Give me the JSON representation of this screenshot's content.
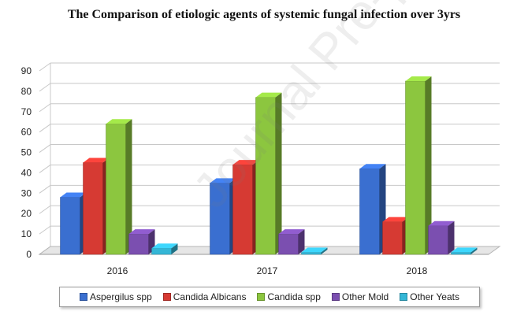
{
  "chart_data": {
    "type": "bar",
    "title": "The Comparison of etiologic agents of systemic fungal infection over 3yrs",
    "categories": [
      "2016",
      "2017",
      "2018"
    ],
    "series": [
      {
        "name": "Aspergilus spp",
        "color": "#3a6fd0",
        "values": [
          28,
          35,
          42
        ]
      },
      {
        "name": "Candida Albicans",
        "color": "#d63a33",
        "values": [
          45,
          44,
          16
        ]
      },
      {
        "name": "Candida spp",
        "color": "#8cc63f",
        "values": [
          64,
          77,
          85
        ]
      },
      {
        "name": "Other Mold",
        "color": "#7b4fb0",
        "values": [
          10,
          10,
          14
        ]
      },
      {
        "name": "Other Yeats",
        "color": "#34b6d6",
        "values": [
          3,
          1,
          1
        ]
      }
    ],
    "ylim": [
      0,
      90
    ],
    "yticks": [
      0,
      10,
      20,
      30,
      40,
      50,
      60,
      70,
      80,
      90
    ],
    "grid": true,
    "legend_position": "bottom",
    "style": "3d-column"
  },
  "watermark": "Journal Pre-proof"
}
